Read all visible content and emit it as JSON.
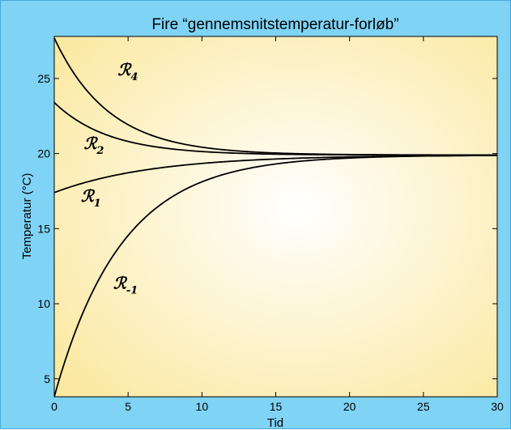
{
  "chart_data": {
    "type": "line",
    "title": "Fire “gennemsnitstemperatur-forløb”",
    "xlabel": "Tid",
    "ylabel": "Temperatur (°C)",
    "xlim": [
      0,
      30
    ],
    "ylim": [
      3.8,
      27.8
    ],
    "xticks": [
      0,
      5,
      10,
      15,
      20,
      25,
      30
    ],
    "yticks": [
      5,
      10,
      15,
      20,
      25
    ],
    "grid": false,
    "series": [
      {
        "name": "R4",
        "label_main": "ℛ",
        "label_sub": "4",
        "y0": 27.7,
        "y_end": 19.9,
        "rate": 0.27,
        "label_at": [
          4.3,
          25.2
        ]
      },
      {
        "name": "R2",
        "label_main": "ℛ",
        "label_sub": "2",
        "y0": 23.4,
        "y_end": 19.9,
        "rate": 0.27,
        "label_at": [
          2.0,
          20.3
        ]
      },
      {
        "name": "R1",
        "label_main": "ℛ",
        "label_sub": "1",
        "y0": 17.4,
        "y_end": 19.9,
        "rate": 0.15,
        "label_at": [
          1.8,
          16.8
        ]
      },
      {
        "name": "R-1",
        "label_main": "ℛ",
        "label_sub": "-1",
        "y0": 3.8,
        "y_end": 19.9,
        "rate": 0.22,
        "label_at": [
          4.0,
          11.0
        ]
      }
    ]
  },
  "colors": {
    "frame": "#7fd3f5",
    "plot_center": "#ffffff",
    "plot_edge": "#fbe9a2",
    "line": "#000000"
  }
}
